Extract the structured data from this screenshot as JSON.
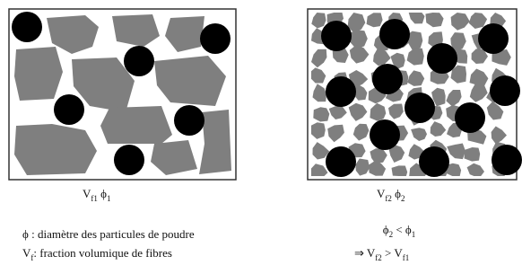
{
  "left_panel": {
    "label": [
      [
        "V",
        "f1"
      ],
      [
        "   ϕ",
        "1"
      ]
    ]
  },
  "right_panel": {
    "label": [
      [
        "V",
        "f2"
      ],
      [
        "   ϕ",
        "2"
      ]
    ]
  },
  "legend": [
    [
      [
        "ϕ : diamètre des particules de poudre"
      ]
    ],
    [
      [
        "V",
        "f"
      ],
      [
        ": fraction volumique de fibres"
      ]
    ]
  ],
  "conclusion": [
    [
      [
        "ϕ",
        "2"
      ],
      [
        " < ϕ",
        "1"
      ]
    ],
    [
      [
        "⇒   V",
        "f2"
      ],
      [
        " > V",
        "f1"
      ]
    ]
  ]
}
